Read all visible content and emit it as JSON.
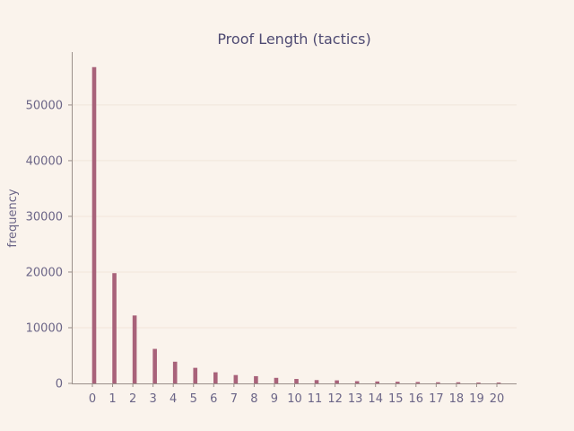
{
  "chart_data": {
    "type": "bar",
    "title": "Proof Length (tactics)",
    "xlabel": "",
    "ylabel": "frequency",
    "categories": [
      "0",
      "1",
      "2",
      "3",
      "4",
      "5",
      "6",
      "7",
      "8",
      "9",
      "10",
      "11",
      "12",
      "13",
      "14",
      "15",
      "16",
      "17",
      "18",
      "19",
      "20"
    ],
    "values": [
      56800,
      19800,
      12200,
      6200,
      3900,
      2800,
      2000,
      1500,
      1300,
      1000,
      800,
      600,
      550,
      400,
      350,
      300,
      250,
      200,
      200,
      150,
      150
    ],
    "ylim": [
      0,
      59500
    ],
    "yticks": [
      0,
      10000,
      20000,
      30000,
      40000,
      50000
    ],
    "grid": true,
    "colors": {
      "bar": "#a8627a",
      "background": "#faf3ec",
      "axis": "#9a8f8a",
      "grid": "#f1e6da",
      "text": "#6b6587",
      "title": "#4e4a72"
    }
  }
}
